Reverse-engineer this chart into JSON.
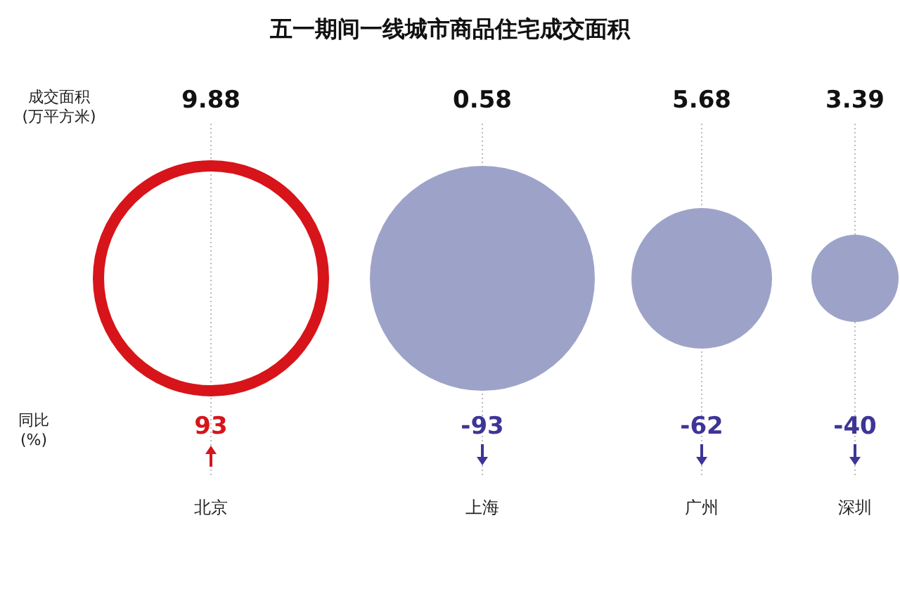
{
  "chart_data": {
    "type": "other",
    "title": "五一期间一线城市商品住宅成交面积",
    "categories": [
      "北京",
      "上海",
      "广州",
      "深圳"
    ],
    "series": [
      {
        "name": "成交面积(万平方米)",
        "values": [
          9.88,
          0.58,
          5.68,
          3.39
        ],
        "colors": [
          "#d7141a",
          "#9da3c8",
          "#9da3c8",
          "#9da3c8"
        ]
      },
      {
        "name": "同比(%)",
        "values": [
          93,
          -93,
          -62,
          -40
        ],
        "colors": [
          "#d7141a",
          "#3d3597",
          "#3d3597",
          "#3d3597"
        ]
      }
    ],
    "data_labels": true
  }
}
